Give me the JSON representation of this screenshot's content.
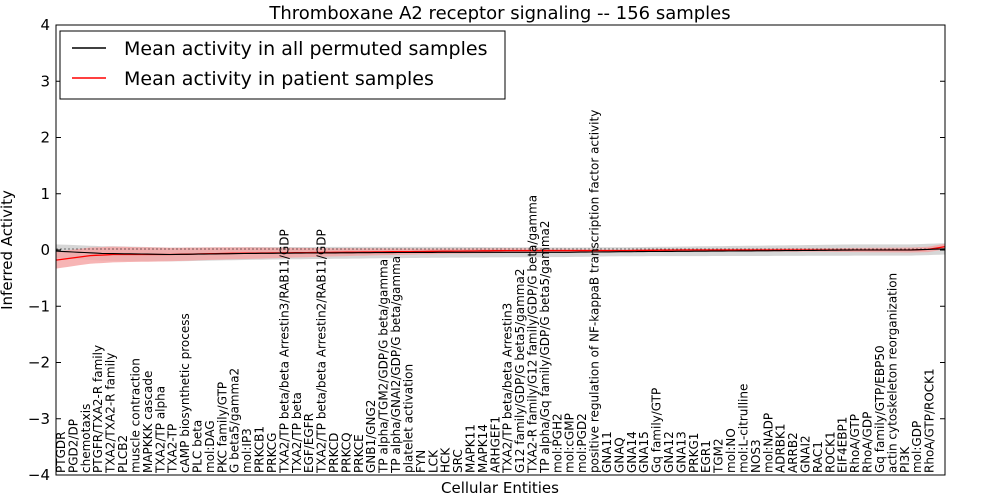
{
  "chart_data": {
    "type": "line",
    "title": "Thromboxane A2 receptor signaling -- 156 samples",
    "xlabel": "Cellular Entities",
    "ylabel": "Inferred Activity",
    "ylim": [
      -4,
      4
    ],
    "yticks": [
      -4,
      -3,
      -2,
      -1,
      0,
      1,
      2,
      3,
      4
    ],
    "ytick_labels": [
      "−4",
      "−3",
      "−2",
      "−1",
      "0",
      "1",
      "2",
      "3",
      "4"
    ],
    "grid": false,
    "legend_position": "top-left",
    "series": [
      {
        "name": "Mean activity in all permuted samples",
        "color": "#000000",
        "band_color": "#c8c8c8",
        "mean": [
          [
            0,
            -0.02
          ],
          [
            8,
            -0.06
          ],
          [
            20,
            -0.08
          ],
          [
            35,
            -0.06
          ],
          [
            50,
            -0.05
          ],
          [
            70,
            -0.04
          ],
          [
            90,
            -0.04
          ],
          [
            100,
            -0.03
          ],
          [
            115,
            -0.02
          ],
          [
            130,
            -0.01
          ],
          [
            140,
            0.0
          ],
          [
            150,
            0.0
          ],
          [
            156,
            0.02
          ]
        ],
        "spread": [
          [
            0,
            0.12
          ],
          [
            10,
            0.13
          ],
          [
            40,
            0.11
          ],
          [
            80,
            0.09
          ],
          [
            100,
            0.08
          ],
          [
            120,
            0.09
          ],
          [
            140,
            0.1
          ],
          [
            156,
            0.1
          ]
        ]
      },
      {
        "name": "Mean activity in patient samples",
        "color": "#ff0000",
        "band_color": "#f5a3a3",
        "mean": [
          [
            0,
            -0.18
          ],
          [
            3,
            -0.14
          ],
          [
            6,
            -0.1
          ],
          [
            10,
            -0.08
          ],
          [
            20,
            -0.08
          ],
          [
            30,
            -0.06
          ],
          [
            40,
            -0.05
          ],
          [
            50,
            -0.04
          ],
          [
            60,
            -0.03
          ],
          [
            70,
            -0.02
          ],
          [
            80,
            -0.01
          ],
          [
            90,
            -0.01
          ],
          [
            100,
            -0.01
          ],
          [
            110,
            0.0
          ],
          [
            120,
            0.0
          ],
          [
            130,
            0.0
          ],
          [
            140,
            0.0
          ],
          [
            150,
            0.0
          ],
          [
            153,
            0.01
          ],
          [
            156,
            0.06
          ]
        ],
        "spread": [
          [
            0,
            0.15
          ],
          [
            10,
            0.14
          ],
          [
            20,
            0.12
          ],
          [
            35,
            0.1
          ],
          [
            50,
            0.07
          ],
          [
            65,
            0.05
          ],
          [
            80,
            0.04
          ],
          [
            90,
            0.03
          ],
          [
            100,
            0.02
          ],
          [
            115,
            0.02
          ],
          [
            130,
            0.03
          ],
          [
            145,
            0.04
          ],
          [
            156,
            0.05
          ]
        ]
      }
    ],
    "x_labels": [
      "PTGDR",
      "PGD2/DP",
      "chemotaxis",
      "PTGFR/TXA2-R family",
      "TXA2/TXA2-R family",
      "PLCB2",
      "muscle contraction",
      "MAPKKK cascade",
      "TXA2/TP alpha",
      "TXA2-TP",
      "cAMP biosynthetic process",
      "PLC beta",
      "mol:DAG",
      "PKC family/GTP",
      "G beta5/gamma2",
      "mol:IP3",
      "PRKCB1",
      "PRKCG",
      "TXA2/TP beta/beta Arrestin3/RAB11/GDP",
      "TXA2/TP beta",
      "EGF/EGFR",
      "TXA2/TP beta/beta Arrestin2/RAB11/GDP",
      "PRKCD",
      "PRKCQ",
      "PRKCE",
      "GNB1/GNG2",
      "TP alpha/TGM2/GDP/G beta/gamma",
      "TP alpha/GNAI2/GDP/G beta/gamma",
      "platelet activation",
      "FYN",
      "LCK",
      "HCK",
      "SRC",
      "MAPK11",
      "MAPK14",
      "ARHGEF1",
      "TXA2/TP beta/beta Arrestin3",
      "G12 family/GDP/G beta5/gamma2",
      "TXA2-R family/G12 family/GDP/G beta/gamma",
      "TP alpha/Gq family/GDP/G beta5/gamma2",
      "mol:PGH2",
      "mol:cGMP",
      "mol:PGD2",
      "positive regulation of NF-kappaB transcription factor activity",
      "GNA11",
      "GNAQ",
      "GNA14",
      "GNA15",
      "Gq family/GTP",
      "GNA12",
      "GNA13",
      "PRKG1",
      "EGR1",
      "TGM2",
      "mol:NO",
      "mol:L-citrulline",
      "NOS3",
      "mol:NADP",
      "ADRBK1",
      "ARRB2",
      "GNAI2",
      "RAC1",
      "ROCK1",
      "EIF4EBP1",
      "RhoA/GTP",
      "RhoA/GDP",
      "Gq family/GTP/EBP50",
      "actin cytoskeleton reorganization",
      "PI3K",
      "mol:GDP",
      "RhoA/GTP/ROCK1"
    ]
  }
}
